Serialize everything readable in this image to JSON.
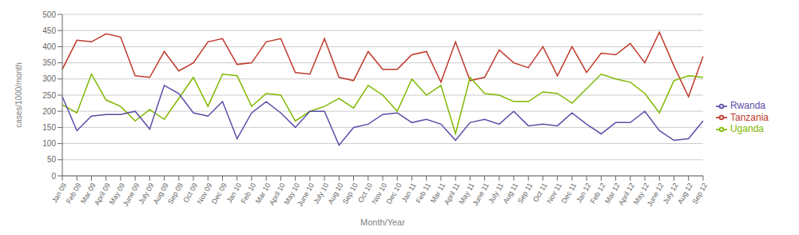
{
  "chart_data": {
    "type": "line",
    "x_label": "Month/Year",
    "y_label": "cases/1000/month",
    "categories": [
      "Jan 09",
      "Feb 09",
      "Mar 09",
      "April 09",
      "May 09",
      "June 09",
      "July 09",
      "Aug 09",
      "Sep 09",
      "Oct 09",
      "Nov 09",
      "Dec 09",
      "Jan 10",
      "Feb 10",
      "Mar 10",
      "April 10",
      "May 10",
      "June 10",
      "July 10",
      "Aug 10",
      "Sep 10",
      "Oct 10",
      "Nov 10",
      "Dec 10",
      "Jan 11",
      "Feb 11",
      "Mar 11",
      "April 11",
      "May 11",
      "June 11",
      "July 11",
      "Aug 11",
      "Sep 11",
      "Oct 11",
      "Nov 11",
      "Dec 11",
      "Jan 12",
      "Feb 12",
      "Mar 12",
      "April 12",
      "May 12",
      "June 12",
      "July 12",
      "Aug 12",
      "Sep 12"
    ],
    "series": [
      {
        "name": "Tanzania",
        "color": "#C0392B",
        "values": [
          330,
          420,
          415,
          440,
          430,
          310,
          305,
          385,
          325,
          350,
          415,
          425,
          345,
          350,
          415,
          425,
          320,
          315,
          425,
          305,
          295,
          385,
          330,
          330,
          375,
          385,
          290,
          415,
          295,
          305,
          390,
          350,
          335,
          400,
          310,
          400,
          320,
          380,
          375,
          410,
          350,
          445,
          340,
          245,
          370
        ]
      },
      {
        "name": "Uganda",
        "color": "#7FB800",
        "values": [
          220,
          195,
          315,
          235,
          215,
          170,
          205,
          175,
          240,
          305,
          215,
          315,
          310,
          215,
          255,
          250,
          170,
          200,
          215,
          240,
          210,
          280,
          250,
          200,
          300,
          250,
          280,
          130,
          305,
          255,
          250,
          230,
          230,
          260,
          255,
          225,
          270,
          315,
          300,
          290,
          255,
          195,
          295,
          310,
          305
        ]
      },
      {
        "name": "Rwanda",
        "color": "#5B4EA8",
        "values": [
          245,
          140,
          185,
          190,
          190,
          200,
          145,
          280,
          255,
          195,
          185,
          230,
          115,
          195,
          230,
          195,
          150,
          200,
          200,
          95,
          150,
          160,
          190,
          195,
          165,
          175,
          160,
          110,
          165,
          175,
          160,
          200,
          155,
          160,
          155,
          195,
          160,
          130,
          165,
          165,
          200,
          140,
          110,
          115,
          170
        ]
      }
    ],
    "ylim": [
      0,
      500
    ],
    "yticks": [
      0,
      50,
      100,
      150,
      200,
      250,
      300,
      350,
      400,
      450,
      500
    ],
    "grid": true,
    "legend": "right"
  }
}
